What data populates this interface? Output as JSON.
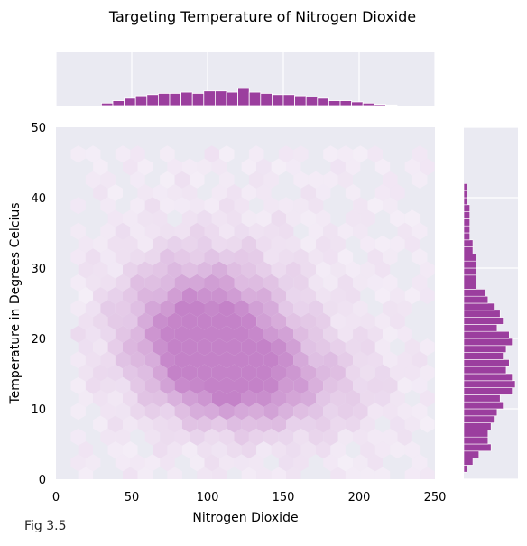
{
  "chart_data": {
    "type": "hexbin-joint",
    "title": "Targeting Temperature of Nitrogen Dioxide",
    "xlabel": "Nitrogen Dioxide",
    "ylabel": "Temperature in Degrees Celcius",
    "xlim": [
      0,
      250
    ],
    "ylim": [
      0,
      50
    ],
    "xticks": [
      "0",
      "50",
      "100",
      "150",
      "200",
      "250"
    ],
    "yticks": [
      "0",
      "10",
      "20",
      "30",
      "40",
      "50"
    ],
    "color": "#9b3e9e",
    "grid": true,
    "background": "#eaeaf2",
    "hex_peak": {
      "x": 97,
      "y": 22
    },
    "hex_secondary_peak": {
      "x": 115,
      "y": 15
    },
    "x_marginal": {
      "bin_width": 7.5,
      "bins": [
        {
          "x0": 30,
          "count": 2
        },
        {
          "x0": 37.5,
          "count": 4
        },
        {
          "x0": 45,
          "count": 6
        },
        {
          "x0": 52.5,
          "count": 8
        },
        {
          "x0": 60,
          "count": 9
        },
        {
          "x0": 67.5,
          "count": 10
        },
        {
          "x0": 75,
          "count": 10
        },
        {
          "x0": 82.5,
          "count": 11
        },
        {
          "x0": 90,
          "count": 10
        },
        {
          "x0": 97.5,
          "count": 12
        },
        {
          "x0": 105,
          "count": 12
        },
        {
          "x0": 112.5,
          "count": 11
        },
        {
          "x0": 120,
          "count": 14
        },
        {
          "x0": 127.5,
          "count": 11
        },
        {
          "x0": 135,
          "count": 10
        },
        {
          "x0": 142.5,
          "count": 9
        },
        {
          "x0": 150,
          "count": 9
        },
        {
          "x0": 157.5,
          "count": 8
        },
        {
          "x0": 165,
          "count": 7
        },
        {
          "x0": 172.5,
          "count": 6
        },
        {
          "x0": 180,
          "count": 4
        },
        {
          "x0": 187.5,
          "count": 4
        },
        {
          "x0": 195,
          "count": 3
        },
        {
          "x0": 202.5,
          "count": 2
        },
        {
          "x0": 210,
          "count": 1
        },
        {
          "x0": 217.5,
          "count": 0.5
        }
      ]
    },
    "y_marginal": {
      "bin_width": 1,
      "bins": [
        {
          "y0": 1,
          "count": 1
        },
        {
          "y0": 2,
          "count": 3
        },
        {
          "y0": 3,
          "count": 5
        },
        {
          "y0": 4,
          "count": 9
        },
        {
          "y0": 5,
          "count": 8
        },
        {
          "y0": 6,
          "count": 8
        },
        {
          "y0": 7,
          "count": 9
        },
        {
          "y0": 8,
          "count": 10
        },
        {
          "y0": 9,
          "count": 11
        },
        {
          "y0": 10,
          "count": 13
        },
        {
          "y0": 11,
          "count": 12
        },
        {
          "y0": 12,
          "count": 16
        },
        {
          "y0": 13,
          "count": 17
        },
        {
          "y0": 14,
          "count": 16
        },
        {
          "y0": 15,
          "count": 14
        },
        {
          "y0": 16,
          "count": 15
        },
        {
          "y0": 17,
          "count": 13
        },
        {
          "y0": 18,
          "count": 14
        },
        {
          "y0": 19,
          "count": 16
        },
        {
          "y0": 20,
          "count": 15
        },
        {
          "y0": 21,
          "count": 11
        },
        {
          "y0": 22,
          "count": 13
        },
        {
          "y0": 23,
          "count": 12
        },
        {
          "y0": 24,
          "count": 10
        },
        {
          "y0": 25,
          "count": 8
        },
        {
          "y0": 26,
          "count": 7
        },
        {
          "y0": 27,
          "count": 4
        },
        {
          "y0": 28,
          "count": 4
        },
        {
          "y0": 29,
          "count": 4
        },
        {
          "y0": 30,
          "count": 4
        },
        {
          "y0": 31,
          "count": 4
        },
        {
          "y0": 32,
          "count": 3
        },
        {
          "y0": 33,
          "count": 3
        },
        {
          "y0": 34,
          "count": 2
        },
        {
          "y0": 35,
          "count": 2
        },
        {
          "y0": 36,
          "count": 2
        },
        {
          "y0": 37,
          "count": 2
        },
        {
          "y0": 38,
          "count": 2
        },
        {
          "y0": 39,
          "count": 1
        },
        {
          "y0": 40,
          "count": 1
        },
        {
          "y0": 41,
          "count": 1
        }
      ]
    }
  },
  "caption": "Fig 3.5"
}
